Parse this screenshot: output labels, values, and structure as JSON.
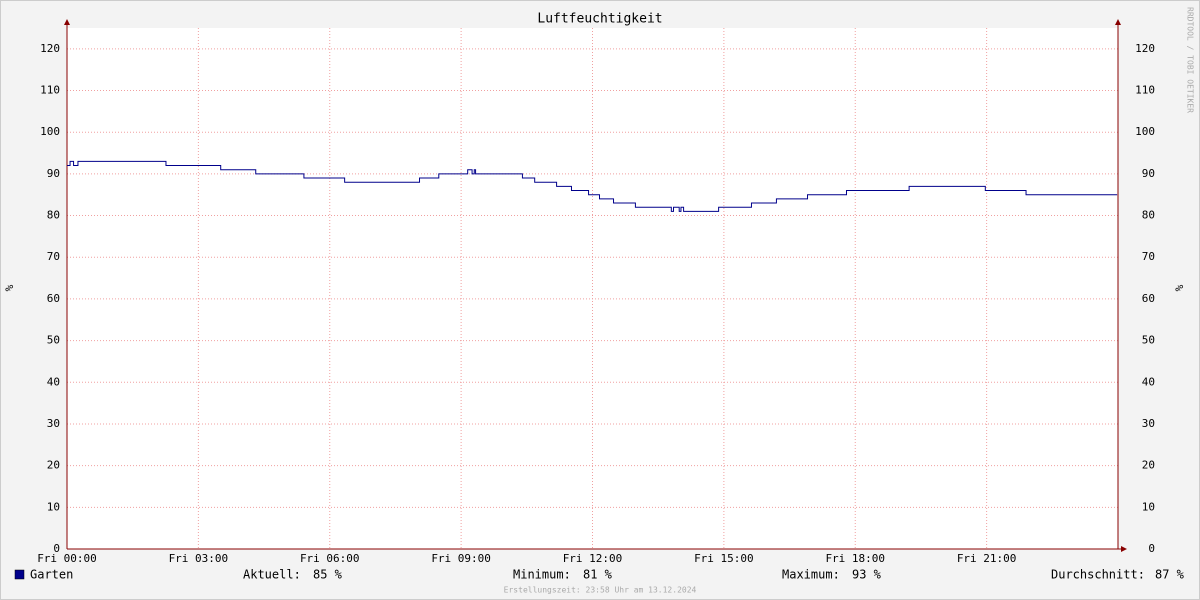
{
  "chart_data": {
    "type": "line",
    "step": true,
    "title": "Luftfeuchtigkeit",
    "y_label": "%",
    "y2_label": "%",
    "watermark": "RRDTOOL / TOBI OETIKER",
    "x": [
      0,
      0.07,
      0.15,
      0.25,
      2.26,
      3.51,
      4.31,
      5.41,
      6.34,
      8.05,
      8.49,
      9.15,
      9.25,
      9.3,
      9.33,
      10.4,
      10.68,
      11.18,
      11.52,
      11.91,
      12.16,
      12.48,
      12.98,
      13.8,
      13.85,
      13.98,
      14.02,
      14.08,
      14.88,
      15.63,
      16.2,
      16.91,
      17.8,
      19.23,
      20.97,
      21.9,
      23.98
    ],
    "series": [
      {
        "name": "Garten",
        "color": "#00008b",
        "values": [
          92,
          93,
          92,
          93,
          92,
          91,
          90,
          89,
          88,
          89,
          90,
          91,
          90,
          91,
          90,
          89,
          88,
          87,
          86,
          85,
          84,
          83,
          82,
          81,
          82,
          81,
          82,
          81,
          82,
          83,
          84,
          85,
          86,
          87,
          86,
          85,
          85
        ]
      }
    ],
    "xlim": [
      0,
      24
    ],
    "xticks": [
      {
        "value": 0,
        "label": "Fri 00:00"
      },
      {
        "value": 3,
        "label": "Fri 03:00"
      },
      {
        "value": 6,
        "label": "Fri 06:00"
      },
      {
        "value": 9,
        "label": "Fri 09:00"
      },
      {
        "value": 12,
        "label": "Fri 12:00"
      },
      {
        "value": 15,
        "label": "Fri 15:00"
      },
      {
        "value": 18,
        "label": "Fri 18:00"
      },
      {
        "value": 21,
        "label": "Fri 21:00"
      }
    ],
    "ylim": [
      0,
      125
    ],
    "yticks": [
      0,
      10,
      20,
      30,
      40,
      50,
      60,
      70,
      80,
      90,
      100,
      110,
      120
    ],
    "grid": true,
    "stats": [
      {
        "label": "Aktuell:",
        "value": "85 %"
      },
      {
        "label": "Minimum:",
        "value": "81 %"
      },
      {
        "label": "Maximum:",
        "value": "93 %"
      },
      {
        "label": "Durchschnitt:",
        "value": "87 %"
      }
    ],
    "footer": "Erstellungszeit: 23:58 Uhr am 13.12.2024"
  }
}
